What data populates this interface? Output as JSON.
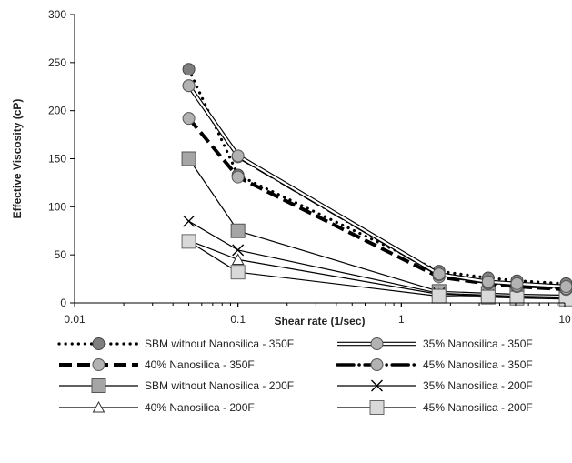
{
  "chart_data": {
    "type": "line",
    "x_scale": "log",
    "xlim": [
      0.01,
      10
    ],
    "ylim": [
      0,
      300
    ],
    "xlabel": "Shear rate (1/sec)",
    "ylabel": "Effective Viscosity (cP)",
    "x_ticks": [
      0.01,
      0.1,
      1,
      10
    ],
    "x_tick_labels": [
      "0.01",
      "0.1",
      "1",
      "10"
    ],
    "y_ticks": [
      0,
      50,
      100,
      150,
      200,
      250,
      300
    ],
    "y_tick_labels": [
      "0",
      "50",
      "100",
      "150",
      "200",
      "250",
      "300"
    ],
    "grid": false,
    "legend_position": "bottom",
    "series": [
      {
        "name": "SBM without Nanosilica - 350F",
        "style": "dotted",
        "marker": "circle-dark",
        "x": [
          0.05,
          0.1,
          1.7,
          3.4,
          5.1,
          10.2
        ],
        "y": [
          243,
          133,
          33,
          26,
          23,
          20
        ]
      },
      {
        "name": "35% Nanosilica - 350F",
        "style": "double",
        "marker": "circle-light",
        "x": [
          0.05,
          0.1,
          1.7,
          3.4,
          5.1,
          10.2
        ],
        "y": [
          226,
          153,
          30,
          22,
          20,
          17
        ]
      },
      {
        "name": "40% Nanosilica - 350F",
        "style": "dashed-thick",
        "marker": "circle-light",
        "x": [
          0.05,
          0.1,
          1.7,
          3.4,
          5.1,
          10.2
        ],
        "y": [
          192,
          131,
          27,
          20,
          17,
          14
        ]
      },
      {
        "name": "45% Nanosilica - 350F",
        "style": "thick-dot",
        "marker": "circle-light",
        "x": [
          0.05,
          0.1,
          1.7,
          3.4,
          5.1,
          10.2
        ],
        "y": [
          226,
          152,
          29,
          21,
          18,
          15
        ]
      },
      {
        "name": "SBM without Nanosilica - 200F",
        "style": "solid",
        "marker": "square-dark",
        "x": [
          0.05,
          0.1,
          1.7,
          3.4,
          5.1,
          10.2
        ],
        "y": [
          150,
          75,
          12,
          10,
          9,
          8
        ]
      },
      {
        "name": "35% Nanosilica - 200F",
        "style": "solid",
        "marker": "x",
        "x": [
          0.05,
          0.1,
          1.7,
          3.4,
          5.1,
          10.2
        ],
        "y": [
          85,
          55,
          10,
          8,
          7,
          6
        ]
      },
      {
        "name": "40% Nanosilica - 200F",
        "style": "solid",
        "marker": "triangle",
        "x": [
          0.05,
          0.1,
          1.7,
          3.4,
          5.1,
          10.2
        ],
        "y": [
          65,
          45,
          9,
          7,
          6,
          5
        ]
      },
      {
        "name": "45% Nanosilica - 200F",
        "style": "solid",
        "marker": "square-light",
        "x": [
          0.05,
          0.1,
          1.7,
          3.4,
          5.1,
          10.2
        ],
        "y": [
          64,
          32,
          7,
          6,
          5,
          4
        ]
      }
    ]
  },
  "colors": {
    "dark_marker": "#7f7f7f",
    "light_marker": "#b2b2b2",
    "line": "#000000"
  }
}
